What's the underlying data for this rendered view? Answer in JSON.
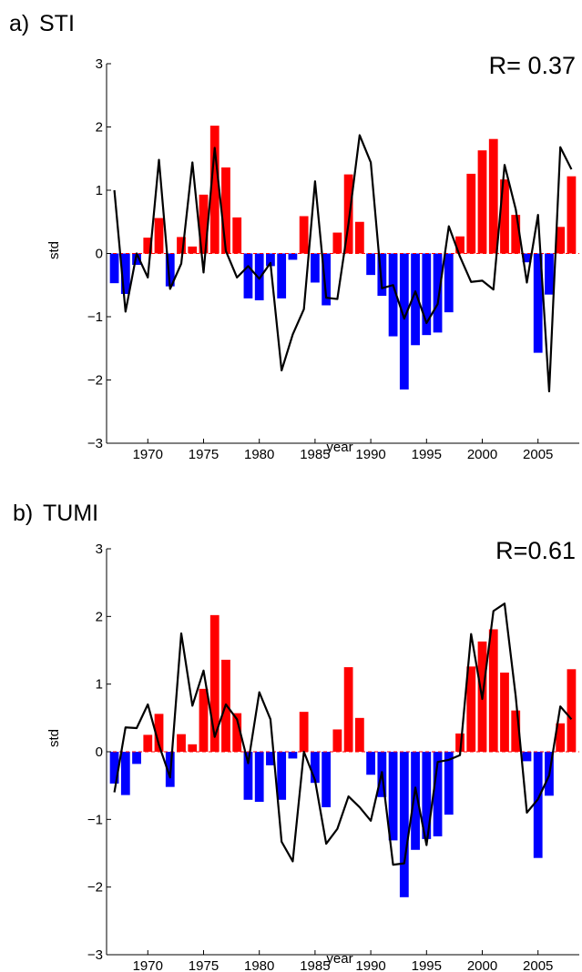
{
  "colors": {
    "positive": "#ff0000",
    "negative": "#0000ff",
    "line": "#000000",
    "axis": "#000000"
  },
  "chart_data": [
    {
      "type": "bar",
      "panel_label": "a)",
      "title": "STI",
      "annotation": "R= 0.37",
      "xlabel": "year",
      "ylabel": "std",
      "ylim": [
        -3,
        3
      ],
      "yticks": [
        -3,
        -2,
        -1,
        0,
        1,
        2,
        3
      ],
      "xticks": [
        1970,
        1975,
        1980,
        1985,
        1990,
        1995,
        2000,
        2005
      ],
      "xlim": [
        1966.3,
        2008.7
      ],
      "grid": false,
      "bars": {
        "x": [
          1967,
          1968,
          1969,
          1970,
          1971,
          1972,
          1973,
          1974,
          1975,
          1976,
          1977,
          1978,
          1979,
          1980,
          1981,
          1982,
          1983,
          1984,
          1985,
          1986,
          1987,
          1988,
          1989,
          1990,
          1991,
          1992,
          1993,
          1994,
          1995,
          1996,
          1997,
          1998,
          1999,
          2000,
          2001,
          2002,
          2003,
          2004,
          2005,
          2006,
          2007,
          2008
        ],
        "values": [
          -0.47,
          -0.64,
          -0.18,
          0.25,
          0.56,
          -0.52,
          0.26,
          0.11,
          0.93,
          2.02,
          1.36,
          0.57,
          -0.71,
          -0.74,
          -0.2,
          -0.71,
          -0.1,
          0.59,
          -0.46,
          -0.82,
          0.33,
          1.25,
          0.5,
          -0.34,
          -0.67,
          -1.31,
          -2.15,
          -1.45,
          -1.29,
          -1.25,
          -0.93,
          0.27,
          1.26,
          1.63,
          1.81,
          1.17,
          0.61,
          -0.14,
          -1.57,
          -0.65,
          0.42,
          1.22
        ]
      },
      "line": {
        "x": [
          1967,
          1968,
          1969,
          1970,
          1971,
          1972,
          1973,
          1974,
          1975,
          1976,
          1977,
          1978,
          1979,
          1980,
          1981,
          1982,
          1983,
          1984,
          1985,
          1986,
          1987,
          1988,
          1989,
          1990,
          1991,
          1992,
          1993,
          1994,
          1995,
          1996,
          1997,
          1998,
          1999,
          2000,
          2001,
          2002,
          2003,
          2004,
          2005,
          2006,
          2007,
          2008
        ],
        "values": [
          1.0,
          -0.92,
          0.0,
          -0.38,
          1.48,
          -0.56,
          -0.16,
          1.44,
          -0.3,
          1.67,
          0.04,
          -0.38,
          -0.2,
          -0.4,
          -0.15,
          -1.85,
          -1.28,
          -0.88,
          1.14,
          -0.7,
          -0.72,
          0.47,
          1.87,
          1.44,
          -0.55,
          -0.5,
          -1.03,
          -0.6,
          -1.1,
          -0.8,
          0.43,
          -0.05,
          -0.45,
          -0.43,
          -0.57,
          1.4,
          0.7,
          -0.46,
          0.61,
          -2.18,
          1.68,
          1.33
        ]
      }
    },
    {
      "type": "bar",
      "panel_label": "b)",
      "title": "TUMI",
      "annotation": "R=0.61",
      "xlabel": "year",
      "ylabel": "std",
      "ylim": [
        -3,
        3
      ],
      "yticks": [
        -3,
        -2,
        -1,
        0,
        1,
        2,
        3
      ],
      "xticks": [
        1970,
        1975,
        1980,
        1985,
        1990,
        1995,
        2000,
        2005
      ],
      "xlim": [
        1966.3,
        2008.7
      ],
      "grid": false,
      "bars": {
        "x": [
          1967,
          1968,
          1969,
          1970,
          1971,
          1972,
          1973,
          1974,
          1975,
          1976,
          1977,
          1978,
          1979,
          1980,
          1981,
          1982,
          1983,
          1984,
          1985,
          1986,
          1987,
          1988,
          1989,
          1990,
          1991,
          1992,
          1993,
          1994,
          1995,
          1996,
          1997,
          1998,
          1999,
          2000,
          2001,
          2002,
          2003,
          2004,
          2005,
          2006,
          2007,
          2008
        ],
        "values": [
          -0.47,
          -0.64,
          -0.18,
          0.25,
          0.56,
          -0.52,
          0.26,
          0.11,
          0.93,
          2.02,
          1.36,
          0.57,
          -0.71,
          -0.74,
          -0.2,
          -0.71,
          -0.1,
          0.59,
          -0.46,
          -0.82,
          0.33,
          1.25,
          0.5,
          -0.34,
          -0.67,
          -1.31,
          -2.15,
          -1.45,
          -1.29,
          -1.25,
          -0.93,
          0.27,
          1.26,
          1.63,
          1.81,
          1.17,
          0.61,
          -0.14,
          -1.57,
          -0.65,
          0.42,
          1.22
        ]
      },
      "line": {
        "x": [
          1967,
          1968,
          1969,
          1970,
          1971,
          1972,
          1973,
          1974,
          1975,
          1976,
          1977,
          1978,
          1979,
          1980,
          1981,
          1982,
          1983,
          1984,
          1985,
          1986,
          1987,
          1988,
          1989,
          1990,
          1991,
          1992,
          1993,
          1994,
          1995,
          1996,
          1997,
          1998,
          1999,
          2000,
          2001,
          2002,
          2003,
          2004,
          2005,
          2006,
          2007,
          2008
        ],
        "values": [
          -0.6,
          0.36,
          0.35,
          0.7,
          0.1,
          -0.38,
          1.75,
          0.68,
          1.2,
          0.22,
          0.7,
          0.48,
          -0.17,
          0.88,
          0.48,
          -1.33,
          -1.62,
          0.0,
          -0.42,
          -1.36,
          -1.14,
          -0.66,
          -0.82,
          -1.02,
          -0.3,
          -1.67,
          -1.65,
          -0.53,
          -1.38,
          -0.15,
          -0.12,
          -0.05,
          1.74,
          0.78,
          2.08,
          2.19,
          0.82,
          -0.9,
          -0.7,
          -0.35,
          0.67,
          0.48
        ]
      }
    }
  ]
}
